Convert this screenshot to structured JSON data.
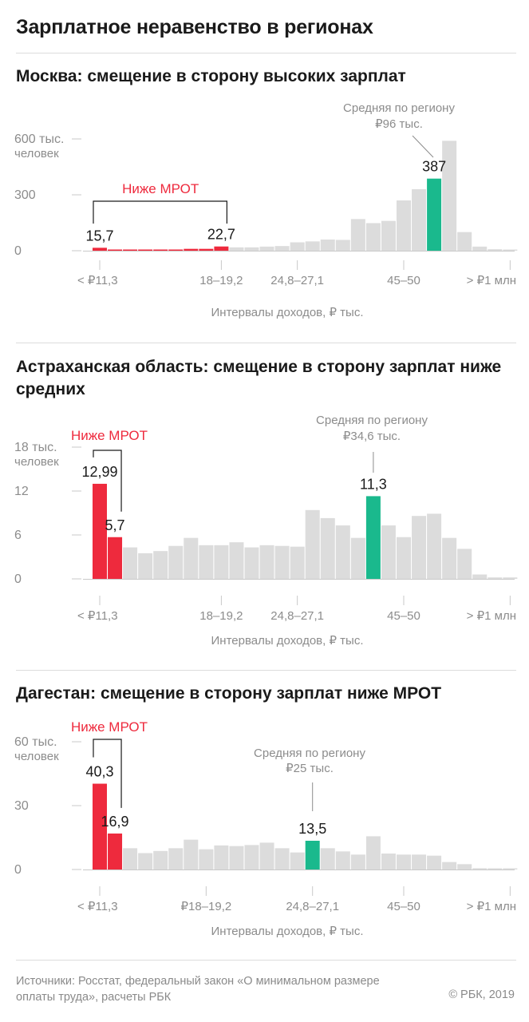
{
  "title": "Зарплатное неравенство в регионах",
  "colors": {
    "red": "#ee2a3d",
    "green": "#1ab98d",
    "grey": "#dcdcdc",
    "axis": "#c9c9c9",
    "muted": "#8c8c8c",
    "text": "#1a1a1a"
  },
  "chart_data": [
    {
      "type": "bar",
      "title": "Москва: смещение в сторону высоких зарплат",
      "ylabel": "тыс. человек",
      "ytick_label_top": "600 тыс.",
      "ytick_unit": "человек",
      "ytick_labels": [
        "0",
        "300"
      ],
      "ylim": [
        0,
        600
      ],
      "xlabel": "Интервалы доходов, ₽ тыс.",
      "xtick_labels": [
        "< ₽11,3",
        "18–19,2",
        "24,8–27,1",
        "45–50",
        "> ₽1 млн"
      ],
      "xtick_bar_index": [
        0,
        8,
        13,
        20,
        27
      ],
      "values": [
        15.7,
        6,
        6,
        6,
        6,
        6,
        10,
        10,
        22.7,
        18,
        18,
        22,
        25,
        45,
        50,
        60,
        58,
        170,
        148,
        160,
        270,
        330,
        387,
        590,
        100,
        22,
        8,
        5
      ],
      "bar_colors": [
        "red",
        "red",
        "red",
        "red",
        "red",
        "red",
        "red",
        "red",
        "red",
        "grey",
        "grey",
        "grey",
        "grey",
        "grey",
        "grey",
        "grey",
        "grey",
        "grey",
        "grey",
        "grey",
        "grey",
        "grey",
        "green",
        "grey",
        "grey",
        "grey",
        "grey",
        "grey"
      ],
      "data_labels": [
        {
          "bar": 0,
          "text": "15,7"
        },
        {
          "bar": 8,
          "text": "22,7"
        },
        {
          "bar": 22,
          "text": "387"
        }
      ],
      "mrot": {
        "label": "Ниже МРОТ",
        "from_bar": 0,
        "to_bar": 8
      },
      "average": {
        "line1": "Средняя по региону",
        "line2": "₽96 тыс.",
        "bar": 22
      }
    },
    {
      "type": "bar",
      "title": "Астраханская область: смещение в сторону зарплат ниже средних",
      "ylabel": "тыс. человек",
      "ytick_label_top": "18 тыс.",
      "ytick_unit": "человек",
      "ytick_labels": [
        "0",
        "6",
        "12"
      ],
      "ylim": [
        0,
        18
      ],
      "xlabel": "Интервалы доходов, ₽ тыс.",
      "xtick_labels": [
        "< ₽11,3",
        "18–19,2",
        "24,8–27,1",
        "45–50",
        "> ₽1 млн"
      ],
      "xtick_bar_index": [
        0,
        8,
        13,
        20,
        27
      ],
      "values": [
        12.99,
        5.7,
        4.3,
        3.5,
        3.8,
        4.5,
        5.6,
        4.6,
        4.6,
        5.0,
        4.3,
        4.6,
        4.5,
        4.4,
        9.4,
        8.3,
        7.3,
        5.6,
        11.3,
        7.3,
        5.7,
        8.6,
        8.9,
        5.6,
        4.1,
        0.6,
        0.2,
        0.2
      ],
      "bar_colors": [
        "red",
        "red",
        "grey",
        "grey",
        "grey",
        "grey",
        "grey",
        "grey",
        "grey",
        "grey",
        "grey",
        "grey",
        "grey",
        "grey",
        "grey",
        "grey",
        "grey",
        "grey",
        "green",
        "grey",
        "grey",
        "grey",
        "grey",
        "grey",
        "grey",
        "grey",
        "grey",
        "grey"
      ],
      "data_labels": [
        {
          "bar": 0,
          "text": "12,99"
        },
        {
          "bar": 1,
          "text": "5,7"
        },
        {
          "bar": 18,
          "text": "11,3"
        }
      ],
      "mrot": {
        "label": "Ниже МРОТ",
        "from_bar": 0,
        "to_bar": 1
      },
      "average": {
        "line1": "Средняя по региону",
        "line2": "₽34,6 тыс.",
        "bar": 18
      }
    },
    {
      "type": "bar",
      "title": "Дагестан: смещение в сторону зарплат ниже МРОТ",
      "ylabel": "тыс. человек",
      "ytick_label_top": "60 тыс.",
      "ytick_unit": "человек",
      "ytick_labels": [
        "0",
        "30"
      ],
      "ylim": [
        0,
        60
      ],
      "xlabel": "Интервалы доходов, ₽ тыс.",
      "xtick_labels": [
        "< ₽11,3",
        "₽18–19,2",
        "24,8–27,1",
        "45–50",
        "> ₽1 млн"
      ],
      "xtick_bar_index": [
        0,
        7,
        14,
        20,
        27
      ],
      "values": [
        40.3,
        16.9,
        10.0,
        7.7,
        8.7,
        10.0,
        14.0,
        9.5,
        11.3,
        11.0,
        11.5,
        12.6,
        10.0,
        8.0,
        13.5,
        10.0,
        8.5,
        7.0,
        15.6,
        7.5,
        7.0,
        7.0,
        6.5,
        3.5,
        2.5,
        0.6,
        0.3,
        0.2
      ],
      "bar_colors": [
        "red",
        "red",
        "grey",
        "grey",
        "grey",
        "grey",
        "grey",
        "grey",
        "grey",
        "grey",
        "grey",
        "grey",
        "grey",
        "grey",
        "green",
        "grey",
        "grey",
        "grey",
        "grey",
        "grey",
        "grey",
        "grey",
        "grey",
        "grey",
        "grey",
        "grey",
        "grey",
        "grey"
      ],
      "data_labels": [
        {
          "bar": 0,
          "text": "40,3"
        },
        {
          "bar": 1,
          "text": "16,9"
        },
        {
          "bar": 14,
          "text": "13,5"
        }
      ],
      "mrot": {
        "label": "Ниже МРОТ",
        "from_bar": 0,
        "to_bar": 1
      },
      "average": {
        "line1": "Средняя по региону",
        "line2": "₽25 тыс.",
        "bar": 14
      }
    }
  ],
  "footer": {
    "sources": "Источники: Росстат, федеральный закон «О минимальном размере оплаты труда», расчеты РБК",
    "copyright": "© РБК, 2019"
  }
}
